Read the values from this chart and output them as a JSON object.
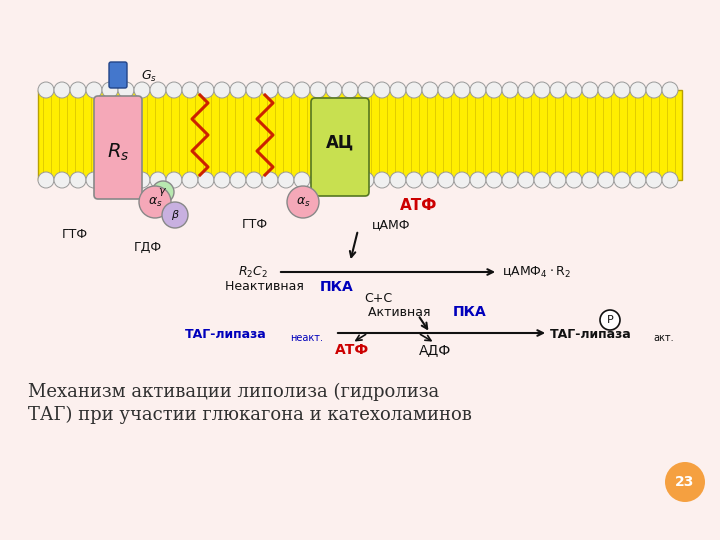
{
  "bg_color": "#fcf0ee",
  "title_line1": "Механизм активации липолиза (гидролиза",
  "title_line2": "ТАГ) при участии глюкагона и катехоламинов",
  "slide_number": "23",
  "slide_num_color": "#f5a040",
  "title_color": "#2f2f2f",
  "membrane_yellow": "#ffee00",
  "membrane_outline": "#b8a000",
  "bead_color": "#f0f0f0",
  "bead_outline": "#999999",
  "receptor_color": "#f5a8b8",
  "ac_color": "#c8e050",
  "alpha_color": "#f5a8b8",
  "beta_color": "#c8b0e0",
  "gamma_color": "#b8e8b0",
  "ligand_color": "#4477cc",
  "red_color": "#cc0000",
  "blue_color": "#0000bb",
  "dark_color": "#111111",
  "arrow_color": "#111111",
  "zigzag_color": "#cc2200"
}
